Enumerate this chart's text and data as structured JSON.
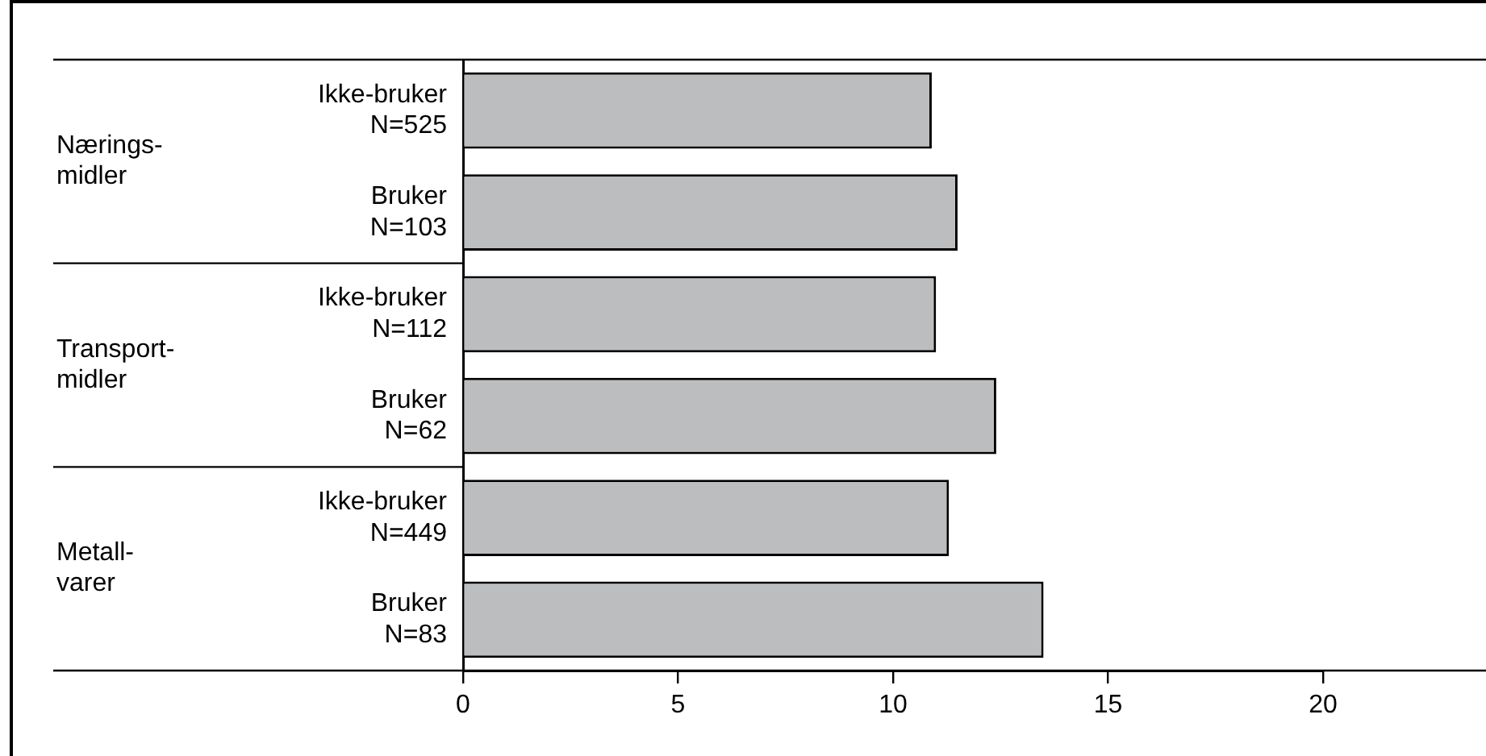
{
  "chart_data": {
    "type": "bar",
    "orientation": "horizontal",
    "categories": [
      "Ikke-bruker\nN=525",
      "Bruker\nN=103",
      "Ikke-bruker\nN=112",
      "Bruker\nN=62",
      "Ikke-bruker\nN=449",
      "Bruker\nN=83"
    ],
    "values": [
      10.9,
      11.5,
      11.0,
      12.4,
      11.3,
      13.5
    ],
    "color": "#bcbdbf",
    "xlim": [
      0,
      20
    ],
    "xticks": [
      0,
      5,
      10,
      15,
      20
    ],
    "grid": false,
    "legend": false,
    "annotations": [
      "Nærings-\nmidler",
      "Transport-\nmidler",
      "Metall-\nvarer"
    ]
  }
}
